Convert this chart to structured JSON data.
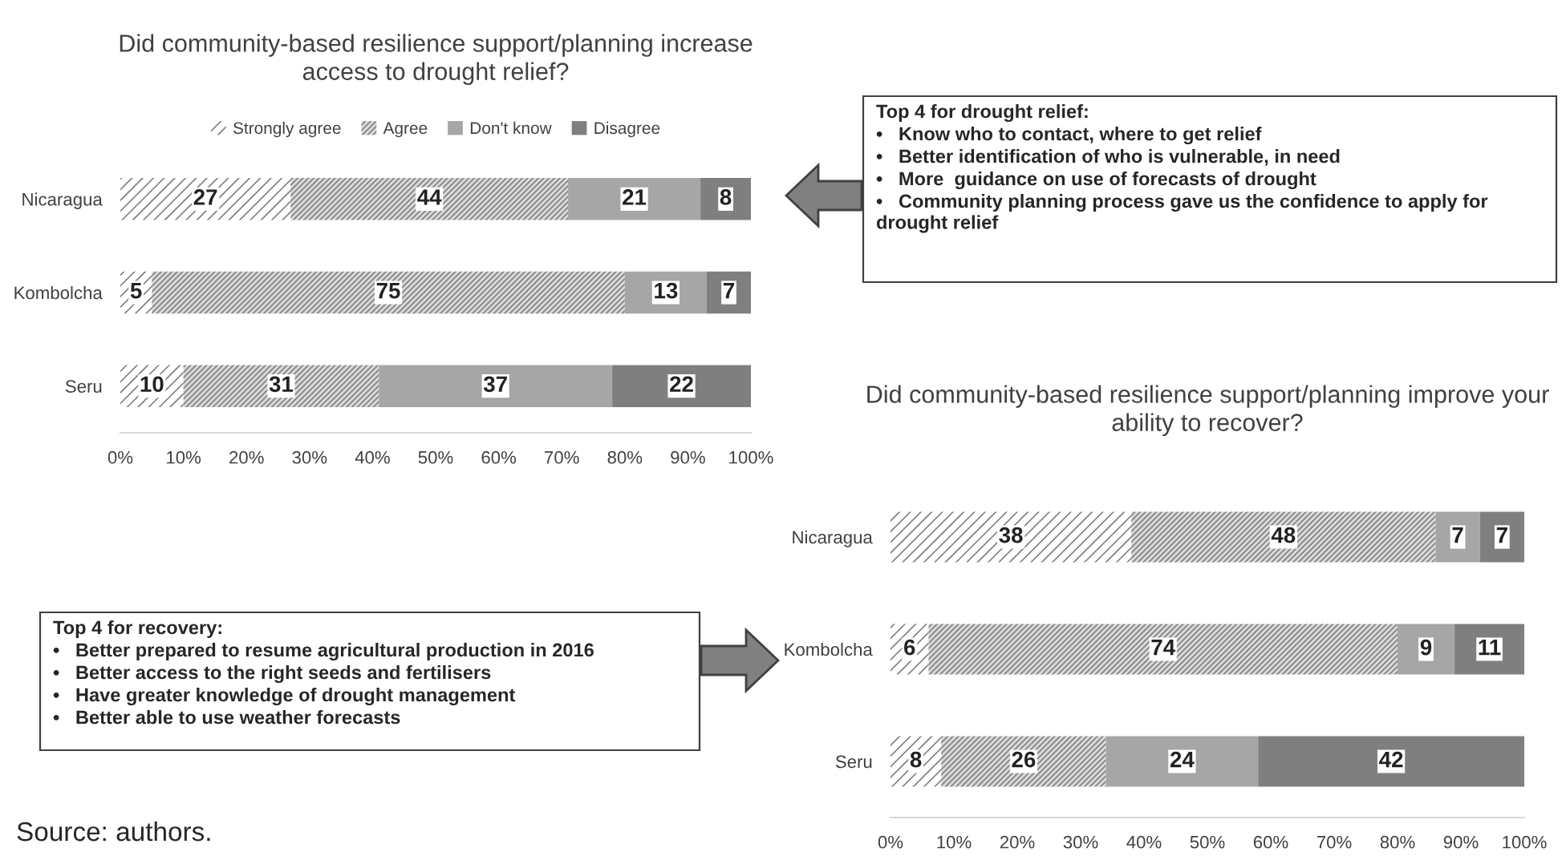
{
  "chart_data": [
    {
      "type": "bar",
      "orientation": "horizontal",
      "stacked": true,
      "title": "Did community-based resilience support/planning increase access to drought relief?",
      "categories": [
        "Nicaragua",
        "Kombolcha",
        "Seru"
      ],
      "series": [
        {
          "name": "Strongly agree",
          "color": "#ffffff",
          "values": [
            27,
            5,
            10
          ]
        },
        {
          "name": "Agree",
          "color": "#d9d9d9",
          "values": [
            44,
            75,
            31
          ]
        },
        {
          "name": "Don't know",
          "color": "#a6a6a6",
          "values": [
            21,
            13,
            37
          ]
        },
        {
          "name": "Disagree",
          "color": "#7f7f7f",
          "values": [
            8,
            7,
            22
          ]
        }
      ],
      "xlim": [
        0,
        100
      ],
      "xticks": [
        {
          "value": 0,
          "label": "0%"
        },
        {
          "value": 10,
          "label": "10%"
        },
        {
          "value": 20,
          "label": "20%"
        },
        {
          "value": 30,
          "label": "30%"
        },
        {
          "value": 40,
          "label": "40%"
        },
        {
          "value": 50,
          "label": "50%"
        },
        {
          "value": 60,
          "label": "60%"
        },
        {
          "value": 70,
          "label": "70%"
        },
        {
          "value": 80,
          "label": "80%"
        },
        {
          "value": 90,
          "label": "90%"
        },
        {
          "value": 100,
          "label": "100%"
        }
      ],
      "data_labels": true,
      "legend": "top",
      "grid": false
    },
    {
      "type": "other",
      "title": "Top 4 for drought relief:",
      "annotations": [
        "•   Know who to contact, where to get relief",
        "•   Better identification of who is vulnerable, in need",
        "•   More  guidance on use of forecasts of drought",
        "•   Community planning process gave us the confidence to apply for drought relief"
      ]
    },
    {
      "type": "bar",
      "orientation": "horizontal",
      "stacked": true,
      "title": "Did community-based resilience support/planning improve your ability to recover?",
      "categories": [
        "Nicaragua",
        "Kombolcha",
        "Seru"
      ],
      "series": [
        {
          "color": "#ffffff",
          "values": [
            38,
            6,
            8
          ]
        },
        {
          "color": "#d9d9d9",
          "values": [
            48,
            74,
            26
          ]
        },
        {
          "color": "#a6a6a6",
          "values": [
            7,
            9,
            24
          ]
        },
        {
          "color": "#7f7f7f",
          "values": [
            7,
            11,
            42
          ]
        }
      ],
      "xlim": [
        0,
        100
      ],
      "xticks": [
        {
          "value": 0,
          "label": "0%"
        },
        {
          "value": 10,
          "label": "10%"
        },
        {
          "value": 20,
          "label": "20%"
        },
        {
          "value": 30,
          "label": "30%"
        },
        {
          "value": 40,
          "label": "40%"
        },
        {
          "value": 50,
          "label": "50%"
        },
        {
          "value": 60,
          "label": "60%"
        },
        {
          "value": 70,
          "label": "70%"
        },
        {
          "value": 80,
          "label": "80%"
        },
        {
          "value": 90,
          "label": "90%"
        },
        {
          "value": 100,
          "label": "100%"
        }
      ],
      "data_labels": true,
      "legend": false,
      "grid": false,
      "annotations": [
        "Source: authors."
      ]
    },
    {
      "type": "other",
      "title": "Top 4 for recovery:",
      "annotations": [
        "•   Better prepared to resume agricultural production in 2016",
        "•   Better access to the right seeds and fertilisers",
        "•   Have greater knowledge of drought management",
        "•   Better able to use weather forecasts"
      ]
    }
  ]
}
